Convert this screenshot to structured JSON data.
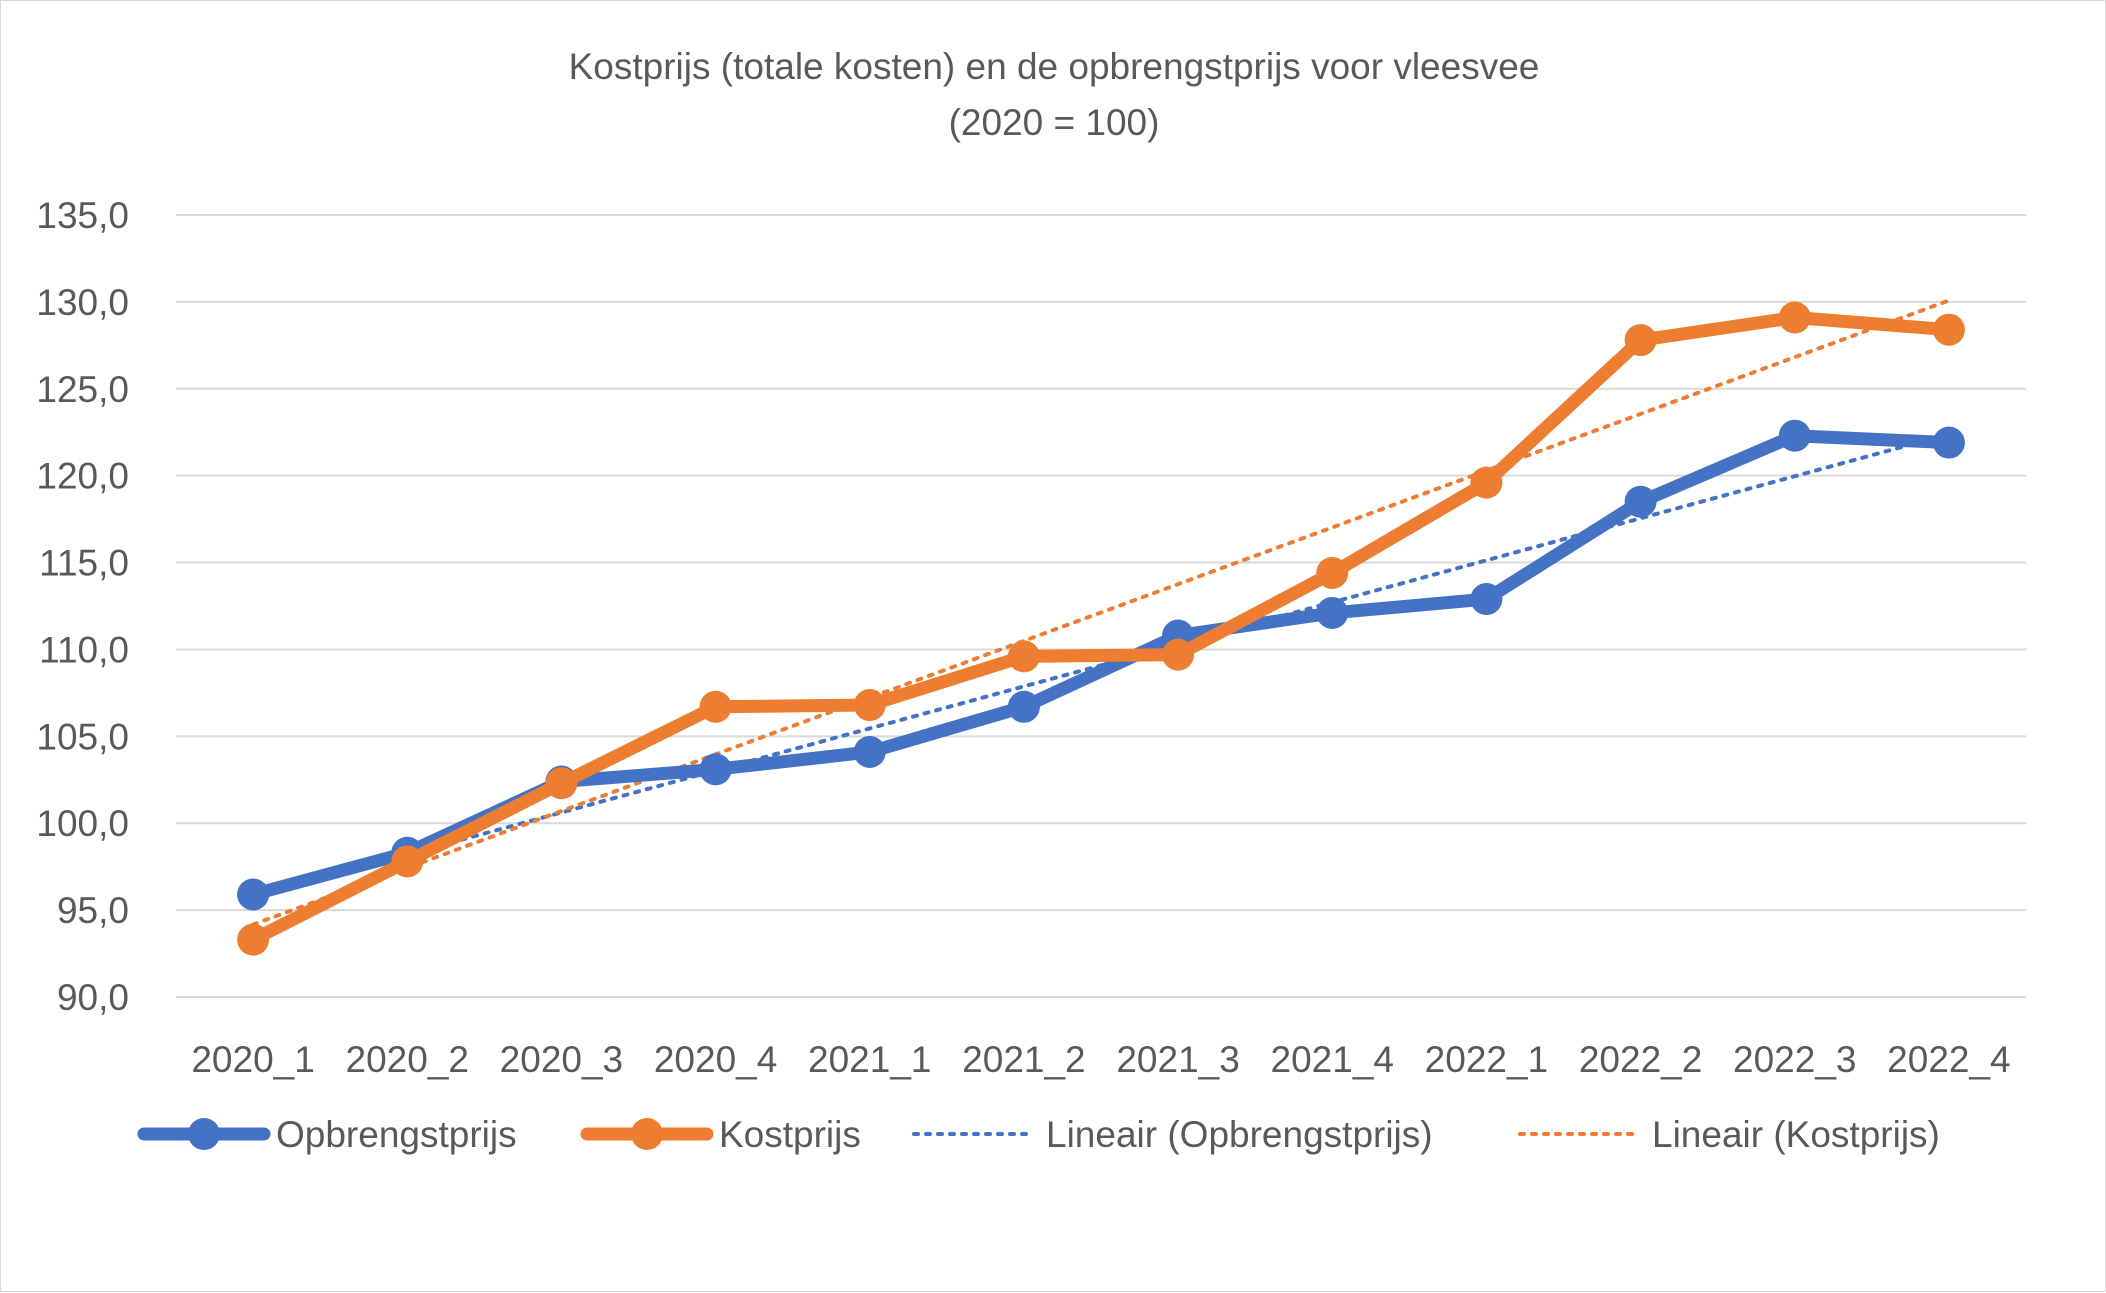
{
  "chart_data": {
    "type": "line",
    "title": "Kostprijs (totale kosten) en de opbrengstprijs voor vleesvee",
    "subtitle": "(2020 = 100)",
    "categories": [
      "2020_1",
      "2020_2",
      "2020_3",
      "2020_4",
      "2021_1",
      "2021_2",
      "2021_3",
      "2021_4",
      "2022_1",
      "2022_2",
      "2022_3",
      "2022_4"
    ],
    "ylim": [
      90,
      135
    ],
    "y_ticks": [
      "90,0",
      "95,0",
      "100,0",
      "105,0",
      "110,0",
      "115,0",
      "120,0",
      "125,0",
      "130,0",
      "135,0"
    ],
    "grid": true,
    "legend_position": "bottom",
    "series": [
      {
        "name": "Opbrengstprijs",
        "color": "#4472c4",
        "style": "solid-markers",
        "values": [
          95.9,
          98.3,
          102.4,
          103.1,
          104.1,
          106.7,
          110.8,
          112.1,
          112.9,
          118.5,
          122.3,
          121.9
        ]
      },
      {
        "name": "Kostprijs",
        "color": "#ed7d31",
        "style": "solid-markers",
        "values": [
          93.3,
          97.8,
          102.3,
          106.7,
          106.8,
          109.6,
          109.7,
          114.4,
          119.6,
          127.8,
          129.1,
          128.4
        ]
      },
      {
        "name": "Lineair (Opbrengstprijs)",
        "color": "#4472c4",
        "style": "dotted-trend",
        "trend_of": 0
      },
      {
        "name": "Lineair (Kostprijs)",
        "color": "#ed7d31",
        "style": "dotted-trend",
        "trend_of": 1
      }
    ]
  }
}
